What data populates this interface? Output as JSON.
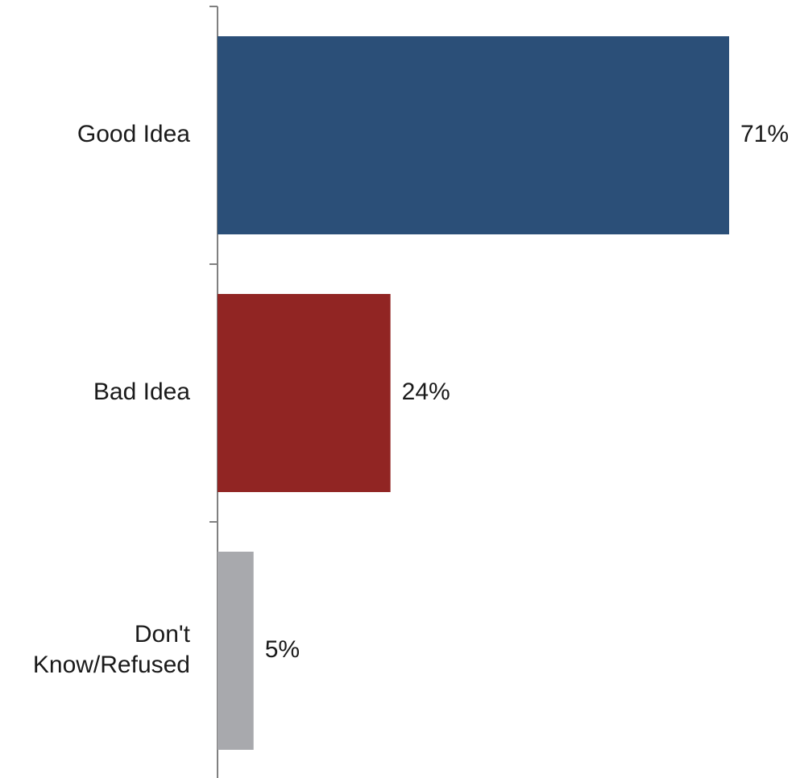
{
  "chart_data": {
    "type": "bar",
    "orientation": "horizontal",
    "categories": [
      [
        "Good Idea"
      ],
      [
        "Bad Idea"
      ],
      [
        "Don't",
        "Know/Refused"
      ]
    ],
    "values": [
      71,
      24,
      5
    ],
    "data_labels": [
      "71%",
      "24%",
      "5%"
    ],
    "colors": [
      "#2b4f78",
      "#912523",
      "#a8a9ad"
    ],
    "xlim": [
      0,
      100
    ],
    "title": "",
    "xlabel": "",
    "ylabel": "",
    "grid": false,
    "legend": "none"
  }
}
